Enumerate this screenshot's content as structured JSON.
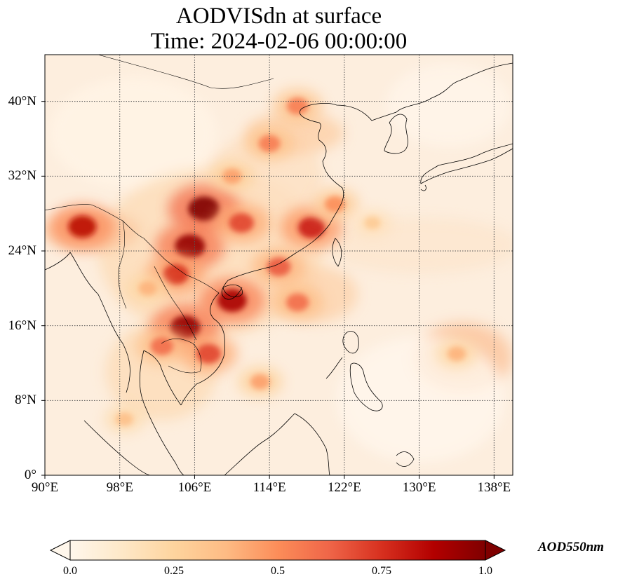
{
  "map": {
    "title_line1": "AODVISdn at surface",
    "title_line2": "Time: 2024-02-06 00:00:00",
    "extent": {
      "lon": [
        90,
        140
      ],
      "lat": [
        0,
        45
      ]
    },
    "lat_ticks": [
      {
        "value": 40,
        "label": "40°N"
      },
      {
        "value": 32,
        "label": "32°N"
      },
      {
        "value": 24,
        "label": "24°N"
      },
      {
        "value": 16,
        "label": "16°N"
      },
      {
        "value": 8,
        "label": "8°N"
      },
      {
        "value": 0,
        "label": "0°"
      }
    ],
    "lon_ticks": [
      {
        "value": 90,
        "label": "90°E"
      },
      {
        "value": 98,
        "label": "98°E"
      },
      {
        "value": 106,
        "label": "106°E"
      },
      {
        "value": 114,
        "label": "114°E"
      },
      {
        "value": 122,
        "label": "122°E"
      },
      {
        "value": 130,
        "label": "130°E"
      },
      {
        "value": 138,
        "label": "138°E"
      }
    ],
    "gridlines": true
  },
  "colorbar": {
    "label": "AOD550nm",
    "colormap": "OrRd",
    "colors": [
      "#fff7ec",
      "#fee8c8",
      "#fdd49e",
      "#fdbb84",
      "#fc8d59",
      "#ef6548",
      "#d7301f",
      "#b30000",
      "#7f0000"
    ],
    "range": [
      0.0,
      1.0
    ],
    "ticks": [
      "0.0",
      "0.25",
      "0.5",
      "0.75",
      "1.0"
    ]
  },
  "aod_field": [
    {
      "lon": 107,
      "lat": 28.5,
      "aod": 1.0
    },
    {
      "lon": 105.5,
      "lat": 24.5,
      "aod": 0.95
    },
    {
      "lon": 105,
      "lat": 15.8,
      "aod": 0.95
    },
    {
      "lon": 110,
      "lat": 18.7,
      "aod": 0.9
    },
    {
      "lon": 118.5,
      "lat": 26.5,
      "aod": 0.8
    },
    {
      "lon": 94,
      "lat": 26.6,
      "aod": 0.85
    },
    {
      "lon": 111,
      "lat": 27,
      "aod": 0.7
    },
    {
      "lon": 104,
      "lat": 21.5,
      "aod": 0.75
    },
    {
      "lon": 107.5,
      "lat": 13,
      "aod": 0.7
    },
    {
      "lon": 102.5,
      "lat": 13.8,
      "aod": 0.6
    },
    {
      "lon": 115,
      "lat": 22.3,
      "aod": 0.65
    },
    {
      "lon": 117,
      "lat": 18.5,
      "aod": 0.6
    },
    {
      "lon": 117,
      "lat": 39.5,
      "aod": 0.55
    },
    {
      "lon": 114,
      "lat": 35.5,
      "aod": 0.55
    },
    {
      "lon": 110,
      "lat": 32,
      "aod": 0.45
    },
    {
      "lon": 121,
      "lat": 29,
      "aod": 0.5
    },
    {
      "lon": 134,
      "lat": 13,
      "aod": 0.4
    },
    {
      "lon": 98.5,
      "lat": 6,
      "aod": 0.35
    },
    {
      "lon": 113,
      "lat": 10,
      "aod": 0.45
    },
    {
      "lon": 125,
      "lat": 27,
      "aod": 0.3
    },
    {
      "lon": 101,
      "lat": 20,
      "aod": 0.4
    }
  ]
}
